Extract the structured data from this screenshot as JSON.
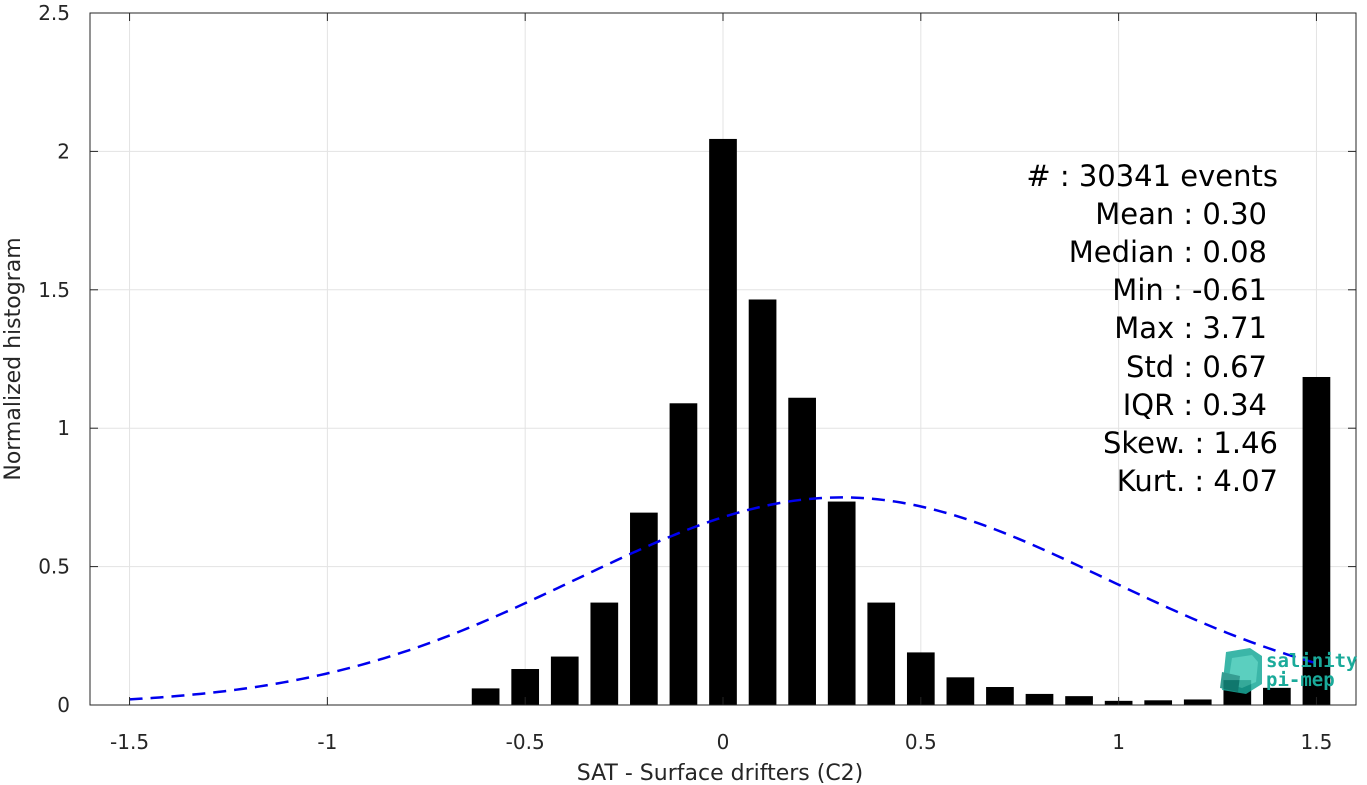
{
  "chart_data": {
    "type": "bar",
    "xlabel": "SAT - Surface drifters (C2)",
    "ylabel": "Normalized histogram",
    "xlim": [
      -1.6,
      1.6
    ],
    "ylim": [
      0,
      2.5
    ],
    "xticks": [
      -1.5,
      -1,
      -0.5,
      0,
      0.5,
      1,
      1.5
    ],
    "xtick_labels": [
      "-1.5",
      "-1",
      "-0.5",
      "0",
      "0.5",
      "1",
      "1.5"
    ],
    "yticks": [
      0,
      0.5,
      1,
      1.5,
      2,
      2.5
    ],
    "ytick_labels": [
      "0",
      "0.5",
      "1",
      "1.5",
      "2",
      "2.5"
    ],
    "grid": true,
    "bar_color": "#000000",
    "bar_width": 0.07,
    "bars": {
      "x": [
        -0.6,
        -0.5,
        -0.4,
        -0.3,
        -0.2,
        -0.1,
        0.0,
        0.1,
        0.2,
        0.3,
        0.4,
        0.5,
        0.6,
        0.7,
        0.8,
        0.9,
        1.0,
        1.1,
        1.2,
        1.3,
        1.4,
        1.5
      ],
      "values": [
        0.06,
        0.13,
        0.175,
        0.37,
        0.695,
        1.09,
        2.045,
        1.465,
        1.11,
        0.735,
        0.37,
        0.19,
        0.1,
        0.065,
        0.04,
        0.032,
        0.015,
        0.017,
        0.02,
        0.09,
        0.062,
        1.185
      ]
    },
    "fit": {
      "type": "gaussian",
      "mean": 0.3,
      "std": 0.67,
      "peak": 0.75,
      "x_range": [
        -1.5,
        1.5
      ],
      "color": "#0000ee",
      "style": "dashed"
    }
  },
  "stats": [
    {
      "label": "#  : 30341 events"
    },
    {
      "label": "Mean : 0.30"
    },
    {
      "label": "Median : 0.08"
    },
    {
      "label": "Min : -0.61"
    },
    {
      "label": "Max : 3.71"
    },
    {
      "label": "Std : 0.67"
    },
    {
      "label": "IQR : 0.34"
    },
    {
      "label": "Skew. : 1.46"
    },
    {
      "label": "Kurt. : 4.07"
    }
  ],
  "logo": {
    "line1": "salinity",
    "line2": "pi-mep",
    "icon": "salinity-logo-icon",
    "color": "#1aaa9a"
  }
}
